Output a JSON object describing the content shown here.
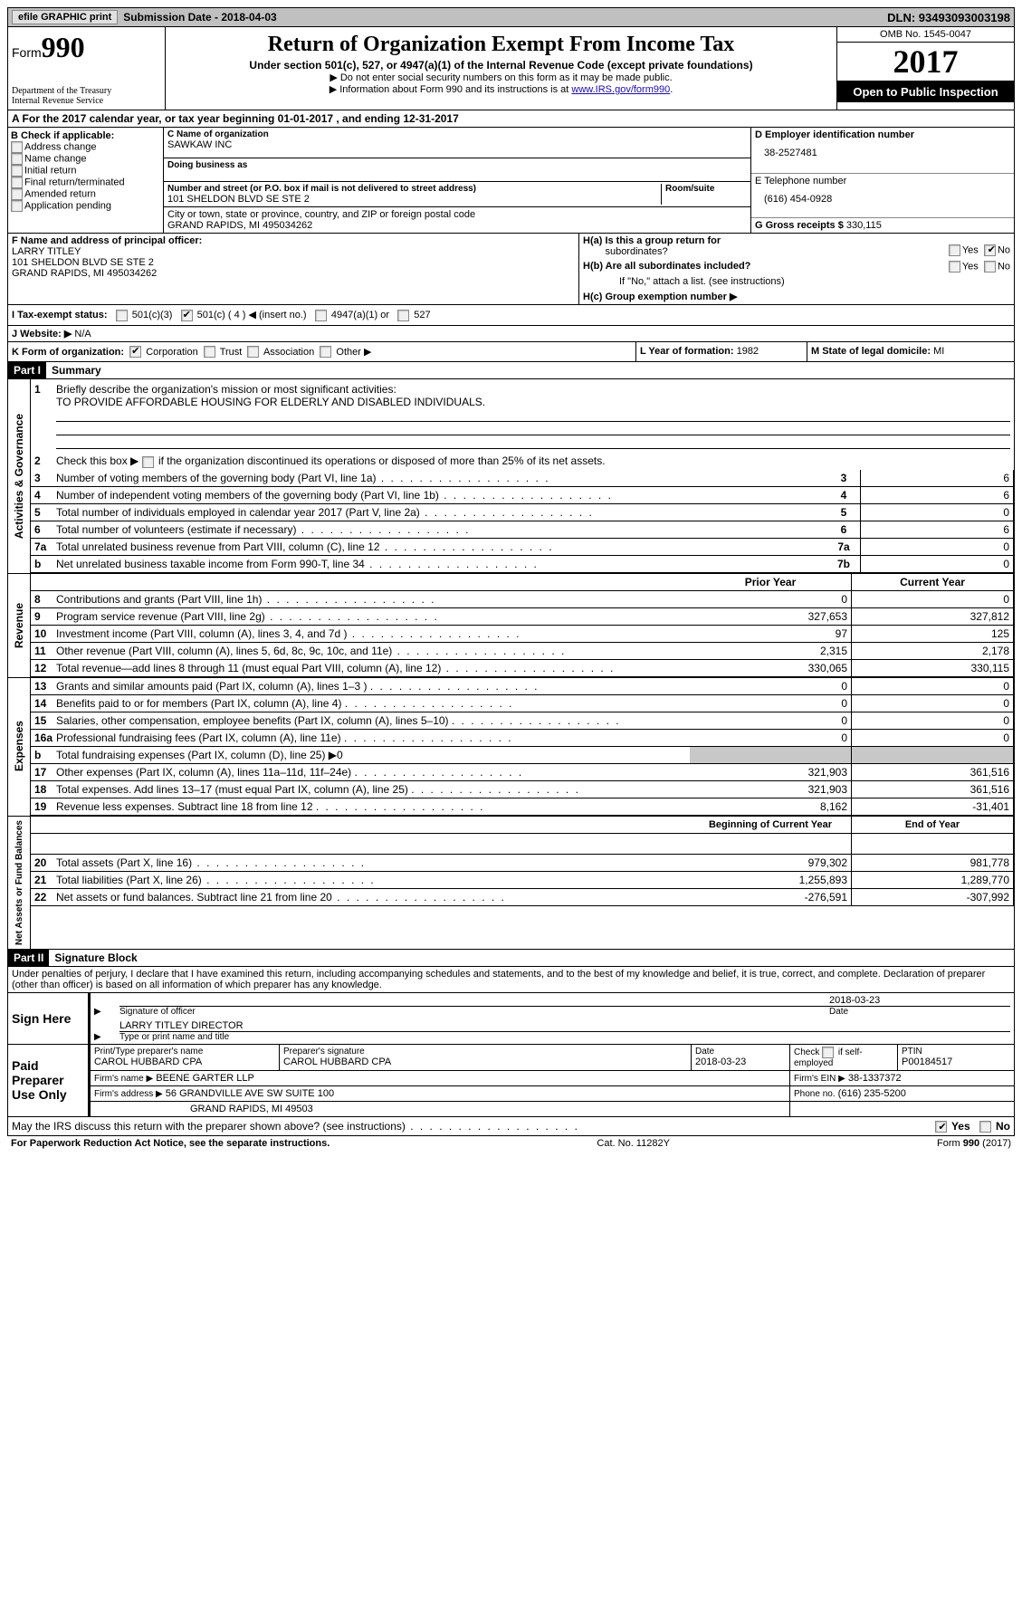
{
  "topbar": {
    "efile": "efile GRAPHIC print",
    "submission": "Submission Date - 2018-04-03",
    "dln": "DLN: 93493093003198"
  },
  "header": {
    "form_label": "Form",
    "form_num": "990",
    "dept1": "Department of the Treasury",
    "dept2": "Internal Revenue Service",
    "title": "Return of Organization Exempt From Income Tax",
    "sub1": "Under section 501(c), 527, or 4947(a)(1) of the Internal Revenue Code (except private foundations)",
    "sub2a": "▶ Do not enter social security numbers on this form as it may be made public.",
    "sub2b": "▶ Information about Form 990 and its instructions is at ",
    "link": "www.IRS.gov/form990",
    "omb": "OMB No. 1545-0047",
    "year": "2017",
    "otp": "Open to Public Inspection"
  },
  "a": "A  For the 2017 calendar year, or tax year beginning 01-01-2017   , and ending 12-31-2017",
  "b": {
    "title": "B Check if applicable:",
    "opts": [
      "Address change",
      "Name change",
      "Initial return",
      "Final return/terminated",
      "Amended return",
      "Application pending"
    ]
  },
  "c": {
    "name_lbl": "C Name of organization",
    "name": "SAWKAW INC",
    "dba_lbl": "Doing business as",
    "dba": "",
    "addr_lbl": "Number and street (or P.O. box if mail is not delivered to street address)",
    "room_lbl": "Room/suite",
    "addr": "101 SHELDON BLVD SE STE 2",
    "city_lbl": "City or town, state or province, country, and ZIP or foreign postal code",
    "city": "GRAND RAPIDS, MI  495034262"
  },
  "d": {
    "ein_lbl": "D Employer identification number",
    "ein": "38-2527481",
    "tel_lbl": "E Telephone number",
    "tel": "(616) 454-0928",
    "gross_lbl": "G Gross receipts $",
    "gross": "330,115"
  },
  "f": {
    "lbl": "F  Name and address of principal officer:",
    "l1": "LARRY TITLEY",
    "l2": "101 SHELDON BLVD SE STE 2",
    "l3": "GRAND RAPIDS, MI  495034262"
  },
  "h": {
    "a": "H(a)  Is this a group return for",
    "a2": "subordinates?",
    "b": "H(b)  Are all subordinates included?",
    "b2": "If \"No,\" attach a list. (see instructions)",
    "c": "H(c)  Group exemption number ▶",
    "yes": "Yes",
    "no": "No"
  },
  "i": {
    "lbl": "I   Tax-exempt status:",
    "o1": "501(c)(3)",
    "o2": "501(c) ( 4 ) ◀ (insert no.)",
    "o3": "4947(a)(1) or",
    "o4": "527"
  },
  "j": {
    "lbl": "J  Website: ▶",
    "val": " N/A"
  },
  "k": {
    "lbl": "K Form of organization:",
    "o1": "Corporation",
    "o2": "Trust",
    "o3": "Association",
    "o4": "Other ▶"
  },
  "l": {
    "lbl": "L Year of formation:",
    "val": "1982"
  },
  "m": {
    "lbl": "M State of legal domicile:",
    "val": "MI"
  },
  "part1": {
    "hdr": "Part I",
    "title": "Summary"
  },
  "gov": {
    "tab": "Activities & Governance",
    "l1": "Briefly describe the organization's mission or most significant activities:",
    "l1v": "TO PROVIDE AFFORDABLE HOUSING FOR ELDERLY AND DISABLED INDIVIDUALS.",
    "l2": "Check this box ▶       if the organization discontinued its operations or disposed of more than 25% of its net assets.",
    "rows": [
      {
        "n": "3",
        "t": "Number of voting members of the governing body (Part VI, line 1a)",
        "k": "3",
        "v": "6"
      },
      {
        "n": "4",
        "t": "Number of independent voting members of the governing body (Part VI, line 1b)",
        "k": "4",
        "v": "6"
      },
      {
        "n": "5",
        "t": "Total number of individuals employed in calendar year 2017 (Part V, line 2a)",
        "k": "5",
        "v": "0"
      },
      {
        "n": "6",
        "t": "Total number of volunteers (estimate if necessary)",
        "k": "6",
        "v": "6"
      },
      {
        "n": "7a",
        "t": "Total unrelated business revenue from Part VIII, column (C), line 12",
        "k": "7a",
        "v": "0"
      },
      {
        "n": "b",
        "t": "Net unrelated business taxable income from Form 990-T, line 34",
        "k": "7b",
        "v": "0"
      }
    ]
  },
  "rev": {
    "tab": "Revenue",
    "h1": "Prior Year",
    "h2": "Current Year",
    "rows": [
      {
        "n": "8",
        "t": "Contributions and grants (Part VIII, line 1h)",
        "p": "0",
        "c": "0"
      },
      {
        "n": "9",
        "t": "Program service revenue (Part VIII, line 2g)",
        "p": "327,653",
        "c": "327,812"
      },
      {
        "n": "10",
        "t": "Investment income (Part VIII, column (A), lines 3, 4, and 7d )",
        "p": "97",
        "c": "125"
      },
      {
        "n": "11",
        "t": "Other revenue (Part VIII, column (A), lines 5, 6d, 8c, 9c, 10c, and 11e)",
        "p": "2,315",
        "c": "2,178"
      },
      {
        "n": "12",
        "t": "Total revenue—add lines 8 through 11 (must equal Part VIII, column (A), line 12)",
        "p": "330,065",
        "c": "330,115"
      }
    ]
  },
  "exp": {
    "tab": "Expenses",
    "rows": [
      {
        "n": "13",
        "t": "Grants and similar amounts paid (Part IX, column (A), lines 1–3 )",
        "p": "0",
        "c": "0"
      },
      {
        "n": "14",
        "t": "Benefits paid to or for members (Part IX, column (A), line 4)",
        "p": "0",
        "c": "0"
      },
      {
        "n": "15",
        "t": "Salaries, other compensation, employee benefits (Part IX, column (A), lines 5–10)",
        "p": "0",
        "c": "0"
      },
      {
        "n": "16a",
        "t": "Professional fundraising fees (Part IX, column (A), line 11e)",
        "p": "0",
        "c": "0"
      },
      {
        "n": "b",
        "t": "Total fundraising expenses (Part IX, column (D), line 25) ▶0",
        "p": "",
        "c": "",
        "shade": true
      },
      {
        "n": "17",
        "t": "Other expenses (Part IX, column (A), lines 11a–11d, 11f–24e)",
        "p": "321,903",
        "c": "361,516"
      },
      {
        "n": "18",
        "t": "Total expenses. Add lines 13–17 (must equal Part IX, column (A), line 25)",
        "p": "321,903",
        "c": "361,516"
      },
      {
        "n": "19",
        "t": "Revenue less expenses. Subtract line 18 from line 12",
        "p": "8,162",
        "c": "-31,401"
      }
    ]
  },
  "net": {
    "tab": "Net Assets or Fund Balances",
    "h1": "Beginning of Current Year",
    "h2": "End of Year",
    "rows": [
      {
        "n": "20",
        "t": "Total assets (Part X, line 16)",
        "p": "979,302",
        "c": "981,778"
      },
      {
        "n": "21",
        "t": "Total liabilities (Part X, line 26)",
        "p": "1,255,893",
        "c": "1,289,770"
      },
      {
        "n": "22",
        "t": "Net assets or fund balances. Subtract line 21 from line 20",
        "p": "-276,591",
        "c": "-307,992"
      }
    ]
  },
  "part2": {
    "hdr": "Part II",
    "title": "Signature Block",
    "perjury": "Under penalties of perjury, I declare that I have examined this return, including accompanying schedules and statements, and to the best of my knowledge and belief, it is true, correct, and complete. Declaration of preparer (other than officer) is based on all information of which preparer has any knowledge."
  },
  "sign": {
    "here": "Sign Here",
    "sig_lbl": "Signature of officer",
    "date": "2018-03-23",
    "date_lbl": "Date",
    "name": "LARRY TITLEY DIRECTOR",
    "name_lbl": "Type or print name and title"
  },
  "prep": {
    "left": "Paid Preparer Use Only",
    "r1a_lbl": "Print/Type preparer's name",
    "r1a": "CAROL HUBBARD CPA",
    "r1b_lbl": "Preparer's signature",
    "r1b": "CAROL HUBBARD CPA",
    "r1c_lbl": "Date",
    "r1c": "2018-03-23",
    "r1d_lbl": "Check        if self-employed",
    "r1e_lbl": "PTIN",
    "r1e": "P00184517",
    "r2a_lbl": "Firm's name      ▶",
    "r2a": "BEENE GARTER LLP",
    "r2b_lbl": "Firm's EIN ▶",
    "r2b": "38-1337372",
    "r3a_lbl": "Firm's address ▶",
    "r3a": "56 GRANDVILLE AVE SW SUITE 100",
    "r3b_lbl": "Phone no.",
    "r3b": "(616) 235-5200",
    "r4": "GRAND RAPIDS, MI  49503"
  },
  "discuss": {
    "q": "May the IRS discuss this return with the preparer shown above? (see instructions)",
    "yes": "Yes",
    "no": "No"
  },
  "footer": {
    "l": "For Paperwork Reduction Act Notice, see the separate instructions.",
    "c": "Cat. No. 11282Y",
    "r": "Form 990 (2017)"
  }
}
